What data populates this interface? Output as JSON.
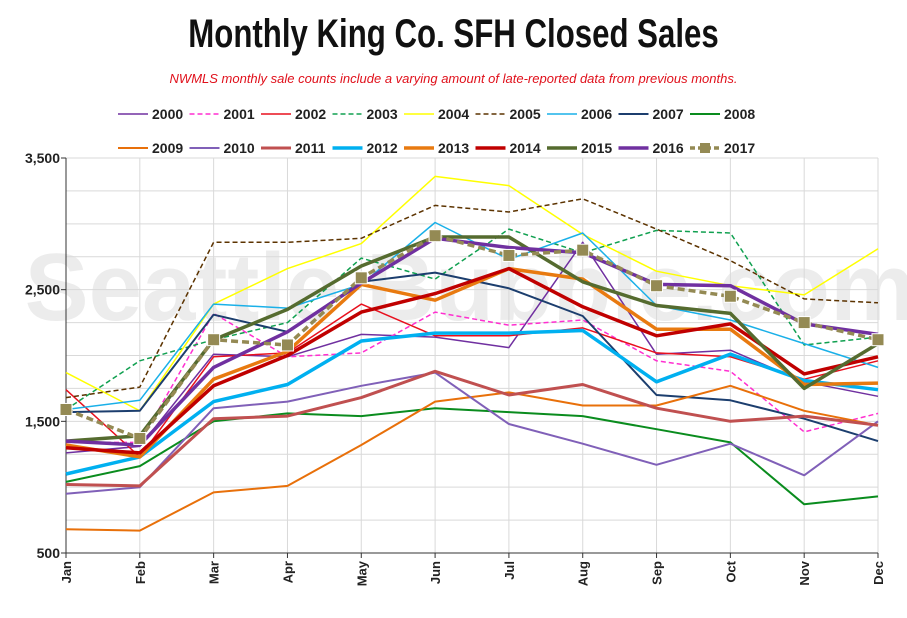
{
  "chart_data": {
    "type": "line",
    "title": "Monthly King Co. SFH Closed Sales",
    "subtitle": "NWMLS monthly sale counts include a varying amount of late-reported  data from previous months.",
    "watermark": "Seattle Bubble.com",
    "categories": [
      "Jan",
      "Feb",
      "Mar",
      "Apr",
      "May",
      "Jun",
      "Jul",
      "Aug",
      "Sep",
      "Oct",
      "Nov",
      "Dec"
    ],
    "y_ticks": [
      "500",
      "1,500",
      "2,500",
      "3,500"
    ],
    "ylim": [
      500,
      3500
    ],
    "grid": true,
    "legend_position": "top",
    "series": [
      {
        "name": "2000",
        "color": "#7030a0",
        "dash": "solid",
        "width": 1.5,
        "values": [
          1260,
          1310,
          2010,
          1990,
          2160,
          2140,
          2060,
          2860,
          2010,
          2040,
          1800,
          1690
        ]
      },
      {
        "name": "2001",
        "color": "#ff2fd0",
        "dash": "dashed",
        "width": 1.5,
        "values": [
          1340,
          1340,
          2320,
          1990,
          2020,
          2330,
          2230,
          2270,
          1960,
          1880,
          1420,
          1560
        ]
      },
      {
        "name": "2002",
        "color": "#e8101e",
        "dash": "solid",
        "width": 1.5,
        "values": [
          1740,
          1230,
          1990,
          2020,
          2390,
          2150,
          2150,
          2210,
          2020,
          1990,
          1820,
          1960
        ]
      },
      {
        "name": "2003",
        "color": "#10a050",
        "dash": "dashed",
        "width": 1.5,
        "values": [
          1590,
          1960,
          2120,
          2250,
          2740,
          2580,
          2960,
          2780,
          2950,
          2930,
          2080,
          2140
        ]
      },
      {
        "name": "2004",
        "color": "#ffff00",
        "dash": "solid",
        "width": 1.5,
        "values": [
          1870,
          1580,
          2390,
          2660,
          2850,
          3360,
          3290,
          2920,
          2640,
          2530,
          2460,
          2810
        ]
      },
      {
        "name": "2005",
        "color": "#5c3300",
        "dash": "dashed",
        "width": 1.5,
        "values": [
          1680,
          1760,
          2860,
          2860,
          2890,
          3140,
          3090,
          3190,
          2960,
          2720,
          2430,
          2400
        ]
      },
      {
        "name": "2006",
        "color": "#1ab0e8",
        "dash": "solid",
        "width": 1.5,
        "values": [
          1590,
          1660,
          2390,
          2360,
          2540,
          3010,
          2730,
          2930,
          2380,
          2270,
          2090,
          1910
        ]
      },
      {
        "name": "2007",
        "color": "#1c3e6e",
        "dash": "solid",
        "width": 2,
        "values": [
          1570,
          1580,
          2310,
          2180,
          2560,
          2630,
          2510,
          2300,
          1700,
          1660,
          1520,
          1350
        ]
      },
      {
        "name": "2008",
        "color": "#0a8c1e",
        "dash": "solid",
        "width": 2,
        "values": [
          1040,
          1160,
          1500,
          1560,
          1540,
          1600,
          1570,
          1540,
          1440,
          1340,
          870,
          930
        ]
      },
      {
        "name": "2009",
        "color": "#e8700a",
        "dash": "solid",
        "width": 2,
        "values": [
          680,
          670,
          960,
          1010,
          1320,
          1650,
          1720,
          1620,
          1620,
          1770,
          1580,
          1470
        ]
      },
      {
        "name": "2010",
        "color": "#8060b8",
        "dash": "solid",
        "width": 2,
        "values": [
          950,
          1000,
          1600,
          1650,
          1770,
          1870,
          1480,
          1330,
          1170,
          1330,
          1090,
          1500
        ]
      },
      {
        "name": "2011",
        "color": "#c05050",
        "dash": "solid",
        "width": 3,
        "values": [
          1020,
          1010,
          1520,
          1540,
          1680,
          1880,
          1700,
          1780,
          1600,
          1500,
          1540,
          1470
        ]
      },
      {
        "name": "2012",
        "color": "#00b0f0",
        "dash": "solid",
        "width": 3.5,
        "values": [
          1100,
          1230,
          1650,
          1780,
          2110,
          2170,
          2170,
          2190,
          1800,
          2010,
          1810,
          1740
        ]
      },
      {
        "name": "2013",
        "color": "#e87a10",
        "dash": "solid",
        "width": 3.5,
        "values": [
          1320,
          1230,
          1820,
          2030,
          2540,
          2420,
          2660,
          2580,
          2200,
          2200,
          1780,
          1790
        ]
      },
      {
        "name": "2014",
        "color": "#c00000",
        "dash": "solid",
        "width": 3.5,
        "values": [
          1300,
          1260,
          1770,
          2000,
          2330,
          2470,
          2660,
          2370,
          2150,
          2240,
          1860,
          1990
        ]
      },
      {
        "name": "2015",
        "color": "#556b2f",
        "dash": "solid",
        "width": 3.5,
        "values": [
          1350,
          1390,
          2120,
          2350,
          2680,
          2900,
          2900,
          2560,
          2380,
          2320,
          1750,
          2090
        ]
      },
      {
        "name": "2016",
        "color": "#7030a0",
        "dash": "solid",
        "width": 3.5,
        "values": [
          1350,
          1320,
          1910,
          2180,
          2550,
          2890,
          2820,
          2780,
          2540,
          2530,
          2240,
          2160
        ]
      },
      {
        "name": "2017",
        "color": "#948a54",
        "dash": "dashed",
        "width": 3.5,
        "markers": true,
        "values": [
          1590,
          1370,
          2120,
          2080,
          2590,
          2910,
          2760,
          2800,
          2530,
          2450,
          2250,
          2120
        ]
      }
    ]
  }
}
